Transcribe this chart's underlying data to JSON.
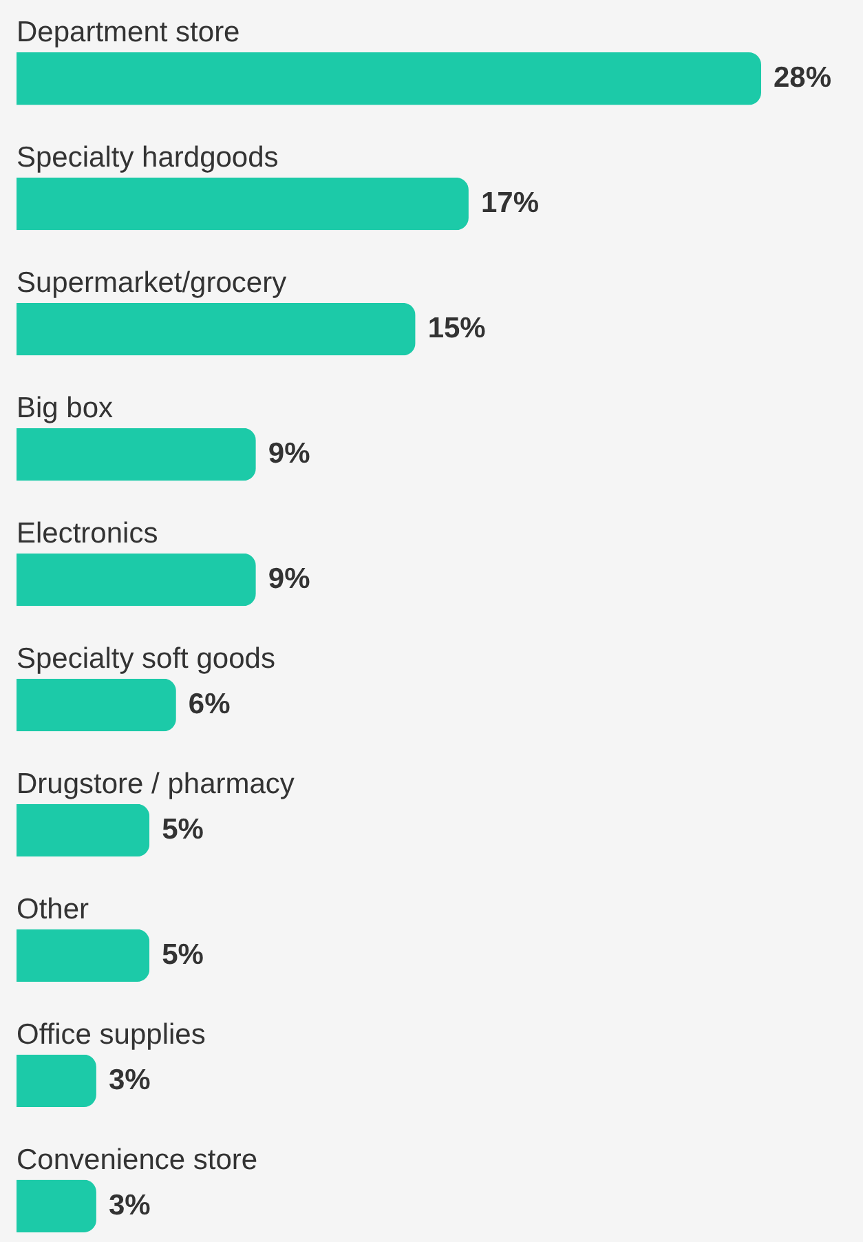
{
  "chart_data": {
    "type": "bar",
    "orientation": "horizontal",
    "categories": [
      "Department store",
      "Specialty hardgoods",
      "Supermarket/grocery",
      "Big box",
      "Electronics",
      "Specialty soft goods",
      "Drugstore / pharmacy",
      "Other",
      "Office supplies",
      "Convenience store"
    ],
    "values": [
      28,
      17,
      15,
      9,
      9,
      6,
      5,
      5,
      3,
      3
    ],
    "color": "#1ccaa8",
    "value_labels": [
      "28%",
      "17%",
      "15%",
      "9%",
      "9%",
      "6%",
      "5%",
      "5%",
      "3%",
      "3%"
    ]
  }
}
